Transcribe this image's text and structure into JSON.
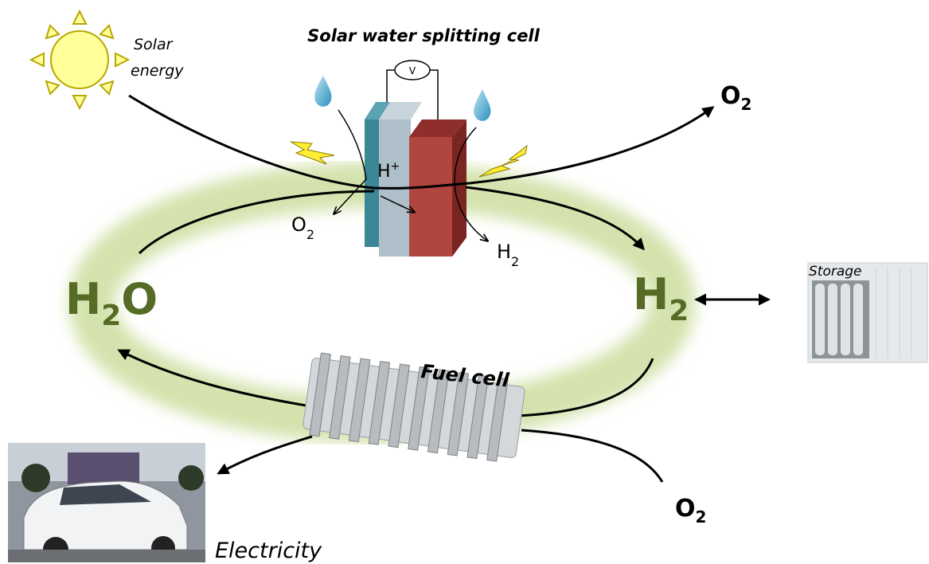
{
  "title": "Solar water splitting cell",
  "labels": {
    "solar_energy": [
      "Solar",
      "energy"
    ],
    "voltmeter": "V",
    "proton": {
      "base": "H",
      "sup": "+"
    },
    "cell_oxygen": {
      "base": "O",
      "sub": "2"
    },
    "cell_hydrogen": {
      "base": "H",
      "sub": "2"
    },
    "water": {
      "base": "H",
      "sub": "2",
      "tail": "O"
    },
    "hydrogen": {
      "base": "H",
      "sub": "2"
    },
    "top_oxygen": {
      "base": "O",
      "sub": "2"
    },
    "bottom_oxygen": {
      "base": "O",
      "sub": "2"
    },
    "storage": "Storage",
    "fuel_cell": "Fuel cell",
    "electricity": "Electricity"
  }
}
